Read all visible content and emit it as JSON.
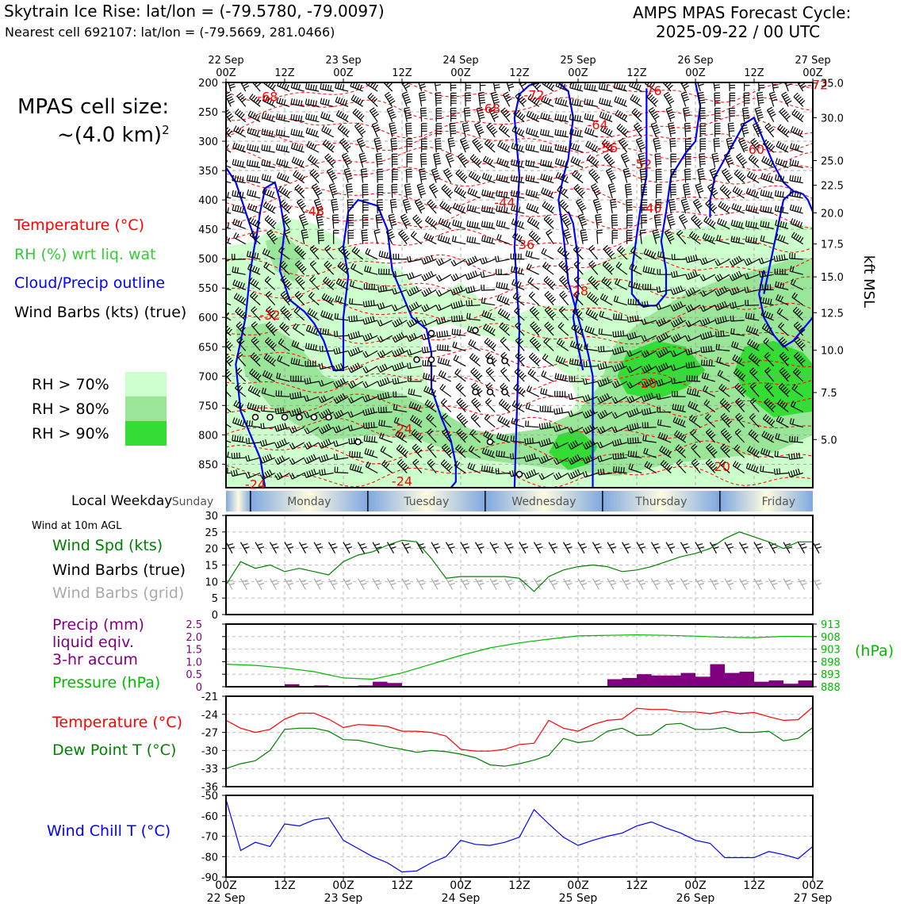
{
  "header": {
    "title_left": "Skytrain Ice Rise: lat/lon = (-79.5780, -79.0097)",
    "subtitle_left": "Nearest cell 692107: lat/lon = (-79.5669, 281.0466)",
    "title_right_1": "AMPS MPAS Forecast Cycle:",
    "title_right_2": "2025-09-22 / 00 UTC"
  },
  "legend": {
    "cell_size_1": "MPAS cell size:",
    "cell_size_2": "~(4.0 km)",
    "cell_size_sup": "2",
    "temperature": "Temperature (°C)",
    "rh": "RH (%) wrt liq. wat",
    "cloud": "Cloud/Precip outline",
    "wind": "Wind Barbs (kts) (true)",
    "rh70": "RH > 70%",
    "rh80": "RH > 80%",
    "rh90": "RH > 90%"
  },
  "colors": {
    "rh70": "#ccffcc",
    "rh80": "#99e699",
    "rh90": "#33dd33",
    "temperature": "#ff0000",
    "cloud": "#0000ff",
    "rh_text": "#33cc33",
    "wind_speed": "#008000",
    "precip": "#800080",
    "pressure": "#00bb00",
    "dewpoint": "#008000",
    "windchill": "#0000ff",
    "grid_barb": "#aaaaaa"
  },
  "chart_data": [
    {
      "id": "cross-section",
      "type": "heatmap",
      "top_ticks": [
        {
          "day": "22 Sep",
          "hour": "00Z"
        },
        {
          "day": "",
          "hour": "12Z"
        },
        {
          "day": "23 Sep",
          "hour": "00Z"
        },
        {
          "day": "",
          "hour": "12Z"
        },
        {
          "day": "24 Sep",
          "hour": "00Z"
        },
        {
          "day": "",
          "hour": "12Z"
        },
        {
          "day": "25 Sep",
          "hour": "00Z"
        },
        {
          "day": "",
          "hour": "12Z"
        },
        {
          "day": "26 Sep",
          "hour": "00Z"
        },
        {
          "day": "",
          "hour": "12Z"
        },
        {
          "day": "27 Sep",
          "hour": "00Z"
        }
      ],
      "x_hours": [
        0,
        120
      ],
      "pressure_range": [
        200,
        890
      ],
      "pressure_ticks": [
        "200",
        "250",
        "300",
        "350",
        "400",
        "450",
        "500",
        "550",
        "600",
        "650",
        "700",
        "750",
        "800",
        "850"
      ],
      "kft_ticks": [
        {
          "p": 201,
          "label": "35.0"
        },
        {
          "p": 260,
          "label": "30.0"
        },
        {
          "p": 333,
          "label": "25.0"
        },
        {
          "p": 375,
          "label": "22.5"
        },
        {
          "p": 422,
          "label": "20.0"
        },
        {
          "p": 475,
          "label": "17.5"
        },
        {
          "p": 531,
          "label": "15.0"
        },
        {
          "p": 592,
          "label": "12.5"
        },
        {
          "p": 656,
          "label": "10.0"
        },
        {
          "p": 728,
          "label": "7.5"
        },
        {
          "p": 808,
          "label": "5.0"
        }
      ],
      "kft_label": "kft MSL",
      "temperature_labels": [
        {
          "h": 8.5,
          "p": 225,
          "text": "-68"
        },
        {
          "h": 54,
          "p": 245,
          "text": "-68"
        },
        {
          "h": 63,
          "p": 222,
          "text": "-72"
        },
        {
          "h": 87,
          "p": 215,
          "text": "-76"
        },
        {
          "h": 121,
          "p": 205,
          "text": "-72"
        },
        {
          "h": 76,
          "p": 273,
          "text": "-64"
        },
        {
          "h": 78,
          "p": 312,
          "text": "-56"
        },
        {
          "h": 85,
          "p": 340,
          "text": "-52"
        },
        {
          "h": 108,
          "p": 315,
          "text": "-60"
        },
        {
          "h": 18,
          "p": 420,
          "text": "-48"
        },
        {
          "h": 57,
          "p": 405,
          "text": "-44"
        },
        {
          "h": 87,
          "p": 415,
          "text": "-40"
        },
        {
          "h": 61,
          "p": 477,
          "text": "-36"
        },
        {
          "h": 72,
          "p": 556,
          "text": "-28"
        },
        {
          "h": 9,
          "p": 597,
          "text": "-32"
        },
        {
          "h": 86,
          "p": 713,
          "text": "-20"
        },
        {
          "h": 36,
          "p": 791,
          "text": "-24"
        },
        {
          "h": 36,
          "p": 880,
          "text": "-24"
        },
        {
          "h": 6,
          "p": 885,
          "text": "-24"
        },
        {
          "h": 101,
          "p": 855,
          "text": "-20"
        }
      ],
      "precip_markers": [
        {
          "h": 6,
          "p": 770
        },
        {
          "h": 9,
          "p": 770
        },
        {
          "h": 12,
          "p": 770
        },
        {
          "h": 15,
          "p": 770
        },
        {
          "h": 18,
          "p": 770
        },
        {
          "h": 21,
          "p": 770
        },
        {
          "h": 27,
          "p": 812
        },
        {
          "h": 39,
          "p": 672
        },
        {
          "h": 42,
          "p": 672
        },
        {
          "h": 42,
          "p": 627
        },
        {
          "h": 51,
          "p": 622
        },
        {
          "h": 54,
          "p": 674
        },
        {
          "h": 57,
          "p": 674
        },
        {
          "h": 51,
          "p": 727
        },
        {
          "h": 54,
          "p": 727
        },
        {
          "h": 57,
          "p": 727
        },
        {
          "h": 54,
          "p": 812
        },
        {
          "h": 60,
          "p": 867
        }
      ]
    },
    {
      "id": "local-weekday",
      "type": "table",
      "label": "Local Weekday",
      "days": [
        "Sunday",
        "Monday",
        "Tuesday",
        "Wednesday",
        "Thursday",
        "Friday"
      ]
    },
    {
      "id": "wind-10m",
      "type": "line",
      "title": "Wind at 10m AGL",
      "series_labels": {
        "speed": "Wind Spd (kts)",
        "true": "Wind Barbs (true)",
        "grid": "Wind Barbs (grid)"
      },
      "ylim": [
        0,
        30
      ],
      "yticks": [
        "0",
        "5",
        "10",
        "15",
        "20",
        "25",
        "30"
      ],
      "x": [
        0,
        3,
        6,
        9,
        12,
        15,
        18,
        21,
        24,
        27,
        30,
        33,
        36,
        39,
        42,
        45,
        48,
        51,
        54,
        57,
        60,
        63,
        66,
        69,
        72,
        75,
        78,
        81,
        84,
        87,
        90,
        93,
        96,
        99,
        102,
        105,
        108,
        111,
        114,
        117,
        120
      ],
      "values": [
        9,
        16,
        14,
        15,
        13,
        14,
        13,
        12,
        16,
        18,
        19,
        21,
        22.5,
        22,
        17,
        11,
        11.5,
        11.5,
        11.5,
        11.5,
        11,
        7,
        11.5,
        13.5,
        14.5,
        15,
        14.5,
        13,
        13.5,
        14.5,
        16,
        17.5,
        18.5,
        20,
        23,
        25,
        23.5,
        22,
        20,
        22,
        22
      ]
    },
    {
      "id": "precip-pressure",
      "type": "bar",
      "precip_label": "Precip (mm)",
      "precip_label_2": "liquid eqiv.",
      "precip_label_3": "3-hr accum",
      "pressure_label": "Pressure (hPa)",
      "pressure_unit": "(hPa)",
      "precip_ylim": [
        0,
        2.5
      ],
      "precip_ticks": [
        "0",
        "0.5",
        "1.0",
        "1.5",
        "2.0",
        "2.5"
      ],
      "pressure_ylim": [
        888,
        913
      ],
      "pressure_ticks": [
        "888",
        "893",
        "898",
        "903",
        "908",
        "913"
      ],
      "precip_bars": [
        {
          "start": 12,
          "value": 0.1
        },
        {
          "start": 18,
          "value": 0.05
        },
        {
          "start": 27,
          "value": 0.05
        },
        {
          "start": 30,
          "value": 0.2
        },
        {
          "start": 33,
          "value": 0.15
        },
        {
          "start": 78,
          "value": 0.3
        },
        {
          "start": 81,
          "value": 0.35
        },
        {
          "start": 84,
          "value": 0.5
        },
        {
          "start": 87,
          "value": 0.45
        },
        {
          "start": 90,
          "value": 0.45
        },
        {
          "start": 93,
          "value": 0.55
        },
        {
          "start": 96,
          "value": 0.4
        },
        {
          "start": 99,
          "value": 0.9
        },
        {
          "start": 102,
          "value": 0.55
        },
        {
          "start": 105,
          "value": 0.6
        },
        {
          "start": 108,
          "value": 0.2
        },
        {
          "start": 111,
          "value": 0.25
        },
        {
          "start": 114,
          "value": 0.12
        },
        {
          "start": 117,
          "value": 0.25
        }
      ],
      "pressure_x": [
        0,
        6,
        12,
        18,
        24,
        30,
        36,
        42,
        48,
        54,
        60,
        66,
        72,
        78,
        84,
        90,
        96,
        102,
        108,
        114,
        120
      ],
      "pressure_values": [
        897,
        896.5,
        895.5,
        894,
        891.5,
        891,
        893.5,
        897,
        900.5,
        903.5,
        905.5,
        907,
        908.3,
        908.5,
        908.7,
        908.5,
        908.2,
        907.7,
        907.6,
        908.1,
        908
      ]
    },
    {
      "id": "temperature-dewpoint",
      "type": "line",
      "temp_label": "Temperature (°C)",
      "dew_label": "Dew Point T (°C)",
      "ylim": [
        -36,
        -21
      ],
      "yticks": [
        "-21",
        "-24",
        "-27",
        "-30",
        "-33",
        "-36"
      ],
      "x": [
        0,
        3,
        6,
        9,
        12,
        15,
        18,
        21,
        24,
        27,
        30,
        33,
        36,
        39,
        42,
        45,
        48,
        51,
        54,
        57,
        60,
        63,
        66,
        69,
        72,
        75,
        78,
        81,
        84,
        87,
        90,
        93,
        96,
        99,
        102,
        105,
        108,
        111,
        114,
        117,
        120
      ],
      "temperature": [
        -25,
        -26.3,
        -27,
        -26.5,
        -24.8,
        -23.8,
        -23.8,
        -24.8,
        -26.2,
        -25.7,
        -25.8,
        -26,
        -26.8,
        -26.8,
        -27,
        -27.6,
        -29.8,
        -30.1,
        -30.1,
        -29.8,
        -29,
        -28.8,
        -25,
        -26.3,
        -26.8,
        -25.7,
        -25,
        -24.8,
        -23,
        -23.2,
        -23.2,
        -23.6,
        -23.6,
        -23.9,
        -23.5,
        -23.9,
        -23.7,
        -24.4,
        -25,
        -24.9,
        -22.8
      ],
      "dewpoint": [
        -33,
        -32.2,
        -31.7,
        -30,
        -26.5,
        -26.3,
        -26.3,
        -26.8,
        -28.2,
        -28.3,
        -28.8,
        -29.4,
        -29.8,
        -30.3,
        -30,
        -30.2,
        -30.6,
        -31.2,
        -32.4,
        -32.6,
        -32.2,
        -31.6,
        -30.8,
        -28,
        -28.7,
        -28.4,
        -26.8,
        -26.3,
        -27.5,
        -27.4,
        -25.7,
        -25.5,
        -26.5,
        -26.5,
        -26.2,
        -27,
        -27,
        -26.8,
        -28.4,
        -28,
        -26.2
      ]
    },
    {
      "id": "wind-chill",
      "type": "line",
      "label": "Wind Chill T (°C)",
      "ylim": [
        -90,
        -50
      ],
      "yticks": [
        "-50",
        "-60",
        "-70",
        "-80",
        "-90"
      ],
      "x_ticks": [
        {
          "hour": "00Z",
          "day": "22 Sep"
        },
        {
          "hour": "12Z",
          "day": ""
        },
        {
          "hour": "00Z",
          "day": "23 Sep"
        },
        {
          "hour": "12Z",
          "day": ""
        },
        {
          "hour": "00Z",
          "day": "24 Sep"
        },
        {
          "hour": "12Z",
          "day": ""
        },
        {
          "hour": "00Z",
          "day": "25 Sep"
        },
        {
          "hour": "12Z",
          "day": ""
        },
        {
          "hour": "00Z",
          "day": "26 Sep"
        },
        {
          "hour": "12Z",
          "day": ""
        },
        {
          "hour": "00Z",
          "day": "27 Sep"
        }
      ],
      "x": [
        0,
        3,
        6,
        9,
        12,
        15,
        18,
        21,
        24,
        27,
        30,
        33,
        36,
        39,
        42,
        45,
        48,
        51,
        54,
        57,
        60,
        63,
        66,
        69,
        72,
        75,
        78,
        81,
        84,
        87,
        90,
        93,
        96,
        99,
        102,
        105,
        108,
        111,
        114,
        117,
        120
      ],
      "values": [
        -52,
        -77,
        -73,
        -75,
        -64,
        -65,
        -62,
        -61,
        -72,
        -76,
        -80,
        -83,
        -87.5,
        -87,
        -83,
        -80,
        -72,
        -74,
        -74.5,
        -73,
        -70.5,
        -57,
        -64,
        -70.5,
        -74.5,
        -72,
        -70,
        -68.5,
        -65,
        -63,
        -66,
        -68.5,
        -72,
        -73.5,
        -80.5,
        -80.5,
        -80.5,
        -77.5,
        -79,
        -81,
        -75
      ]
    }
  ]
}
